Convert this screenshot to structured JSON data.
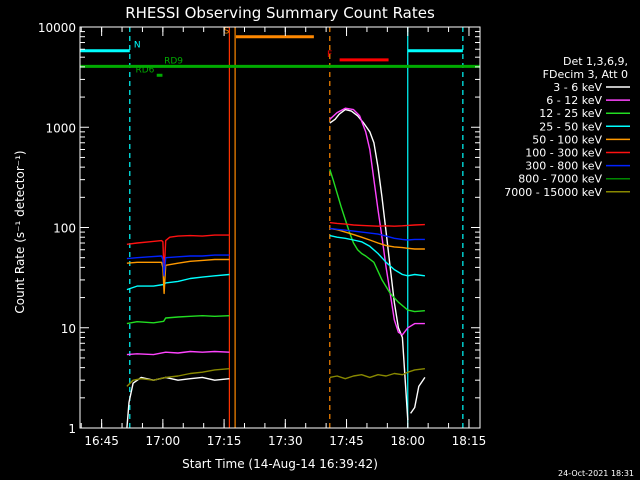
{
  "chart_data": {
    "type": "line",
    "title": "RHESSI Observing Summary Count Rates",
    "xlabel": "Start Time (14-Aug-14 16:39:42)",
    "ylabel": "Count Rate (s⁻¹ detector⁻¹)",
    "x_units": "minutes since 16:39:42",
    "xlim": [
      0,
      98
    ],
    "ylim": [
      1,
      10000
    ],
    "yscale": "log",
    "x_ticks": [
      {
        "t": 5.3,
        "label": "16:45"
      },
      {
        "t": 20.3,
        "label": "17:00"
      },
      {
        "t": 35.3,
        "label": "17:15"
      },
      {
        "t": 50.3,
        "label": "17:30"
      },
      {
        "t": 65.3,
        "label": "17:45"
      },
      {
        "t": 80.3,
        "label": "18:00"
      },
      {
        "t": 95.3,
        "label": "18:15"
      }
    ],
    "y_ticks": [
      1,
      10,
      100,
      1000,
      10000
    ],
    "y_tick_labels": [
      "1",
      "10",
      "100",
      "1000",
      "10000"
    ],
    "legend_header": [
      "Det 1,3,6,9,",
      "FDecim 3, Att 0"
    ],
    "footer_date": "24-Oct-2021 18:31",
    "series": [
      {
        "name": "3 - 6 keV",
        "color": "#ffffff",
        "segments": [
          [
            [
              11.5,
              1
            ],
            [
              12,
              1.8
            ],
            [
              13,
              2.8
            ],
            [
              15,
              3.2
            ],
            [
              18,
              3
            ],
            [
              21,
              3.2
            ],
            [
              24,
              3
            ],
            [
              27,
              3.1
            ],
            [
              30,
              3.2
            ],
            [
              33,
              3
            ],
            [
              36.6,
              3.1
            ]
          ],
          [
            [
              61.2,
              1100
            ],
            [
              62.5,
              1200
            ],
            [
              63.5,
              1350
            ],
            [
              65,
              1500
            ],
            [
              66.5,
              1450
            ],
            [
              68,
              1300
            ],
            [
              69.5,
              1100
            ],
            [
              71,
              900
            ],
            [
              72,
              700
            ],
            [
              73,
              400
            ],
            [
              74,
              200
            ],
            [
              75,
              90
            ],
            [
              76,
              40
            ],
            [
              77,
              18
            ],
            [
              78,
              10
            ],
            [
              79,
              8
            ],
            [
              80.3,
              1.2
            ]
          ],
          [
            [
              81,
              1.4
            ],
            [
              82,
              1.6
            ],
            [
              83,
              2.6
            ],
            [
              84.5,
              3.2
            ]
          ]
        ]
      },
      {
        "name": "6 - 12 keV",
        "color": "#ff44ff",
        "segments": [
          [
            [
              11.5,
              5.4
            ],
            [
              14,
              5.5
            ],
            [
              18,
              5.4
            ],
            [
              21,
              5.7
            ],
            [
              24,
              5.6
            ],
            [
              27,
              5.8
            ],
            [
              30,
              5.7
            ],
            [
              33,
              5.8
            ],
            [
              36.6,
              5.7
            ]
          ],
          [
            [
              61.2,
              1200
            ],
            [
              63,
              1400
            ],
            [
              65,
              1550
            ],
            [
              67,
              1500
            ],
            [
              68.5,
              1300
            ],
            [
              70,
              900
            ],
            [
              71,
              600
            ],
            [
              72,
              300
            ],
            [
              73,
              150
            ],
            [
              74,
              80
            ],
            [
              75,
              40
            ],
            [
              76,
              22
            ],
            [
              77,
              12
            ],
            [
              78,
              9
            ],
            [
              79,
              8.5
            ],
            [
              80.3,
              10
            ]
          ],
          [
            [
              80.3,
              10
            ],
            [
              82,
              11
            ],
            [
              84.5,
              11
            ]
          ]
        ]
      },
      {
        "name": "12 - 25 keV",
        "color": "#22dd22",
        "segments": [
          [
            [
              11.5,
              11
            ],
            [
              14,
              11.5
            ],
            [
              18,
              11.2
            ],
            [
              20.5,
              11.6
            ],
            [
              21,
              12.5
            ],
            [
              24,
              12.8
            ],
            [
              27,
              13
            ],
            [
              30,
              13.2
            ],
            [
              33,
              13
            ],
            [
              36.6,
              13.2
            ]
          ],
          [
            [
              61.2,
              380
            ],
            [
              62,
              300
            ],
            [
              63,
              220
            ],
            [
              64,
              160
            ],
            [
              65,
              120
            ],
            [
              66,
              90
            ],
            [
              67,
              70
            ],
            [
              68,
              60
            ],
            [
              69,
              55
            ],
            [
              70,
              52
            ],
            [
              72,
              45
            ],
            [
              74,
              30
            ],
            [
              76,
              22
            ],
            [
              78,
              18
            ],
            [
              80.3,
              15
            ]
          ],
          [
            [
              80.3,
              15
            ],
            [
              82,
              14.5
            ],
            [
              84.5,
              14.8
            ]
          ]
        ]
      },
      {
        "name": "25 - 50 keV",
        "color": "#00ffff",
        "segments": [
          [
            [
              11.5,
              24
            ],
            [
              14,
              26
            ],
            [
              18,
              26
            ],
            [
              20.5,
              27
            ],
            [
              21,
              28
            ],
            [
              24,
              29
            ],
            [
              27,
              31
            ],
            [
              30,
              32
            ],
            [
              33,
              33
            ],
            [
              36.6,
              34
            ]
          ],
          [
            [
              61.2,
              83
            ],
            [
              63,
              80
            ],
            [
              65,
              78
            ],
            [
              67,
              75
            ],
            [
              69,
              72
            ],
            [
              71,
              65
            ],
            [
              73,
              55
            ],
            [
              75,
              45
            ],
            [
              77,
              38
            ],
            [
              79,
              34
            ],
            [
              80.3,
              33
            ]
          ],
          [
            [
              80.3,
              33
            ],
            [
              82,
              34
            ],
            [
              84.5,
              33
            ]
          ]
        ]
      },
      {
        "name": "50 - 100 keV",
        "color": "#ff9900",
        "segments": [
          [
            [
              11.5,
              44
            ],
            [
              14,
              45
            ],
            [
              18,
              45
            ],
            [
              20,
              45
            ],
            [
              20.3,
              40
            ],
            [
              20.6,
              22
            ],
            [
              21,
              42
            ],
            [
              24,
              44
            ],
            [
              27,
              46
            ],
            [
              30,
              47
            ],
            [
              33,
              48
            ],
            [
              36.6,
              48
            ]
          ],
          [
            [
              61.2,
              98
            ],
            [
              63,
              95
            ],
            [
              65,
              90
            ],
            [
              67,
              85
            ],
            [
              69,
              80
            ],
            [
              71,
              75
            ],
            [
              73,
              70
            ],
            [
              75,
              66
            ],
            [
              77,
              64
            ],
            [
              79,
              63
            ],
            [
              80.3,
              62
            ]
          ],
          [
            [
              80.3,
              62
            ],
            [
              82,
              61
            ],
            [
              84.5,
              61
            ]
          ]
        ]
      },
      {
        "name": "100 - 300 keV",
        "color": "#ff1111",
        "segments": [
          [
            [
              11.5,
              68
            ],
            [
              14,
              70
            ],
            [
              17,
              72
            ],
            [
              20,
              74
            ],
            [
              20.3,
              72
            ],
            [
              20.6,
              35
            ],
            [
              21,
              74
            ],
            [
              22,
              80
            ],
            [
              24,
              82
            ],
            [
              27,
              83
            ],
            [
              30,
              82
            ],
            [
              33,
              84
            ],
            [
              36.6,
              84
            ]
          ],
          [
            [
              61.2,
              112
            ],
            [
              63,
              110
            ],
            [
              65,
              108
            ],
            [
              67,
              106
            ],
            [
              69,
              105
            ],
            [
              71,
              104
            ],
            [
              73,
              103
            ],
            [
              75,
              104
            ],
            [
              77,
              103
            ],
            [
              79,
              104
            ],
            [
              80.3,
              105
            ]
          ],
          [
            [
              80.3,
              105
            ],
            [
              82,
              106
            ],
            [
              84.5,
              107
            ]
          ]
        ]
      },
      {
        "name": "300 - 800 keV",
        "color": "#0022ff",
        "segments": [
          [
            [
              11.5,
              49
            ],
            [
              14,
              50
            ],
            [
              17,
              51
            ],
            [
              20,
              52
            ],
            [
              20.3,
              48
            ],
            [
              20.6,
              33
            ],
            [
              21,
              50
            ],
            [
              24,
              51
            ],
            [
              27,
              52
            ],
            [
              30,
              52
            ],
            [
              33,
              53
            ],
            [
              36.6,
              53
            ]
          ],
          [
            [
              61.2,
              98
            ],
            [
              63,
              96
            ],
            [
              65,
              94
            ],
            [
              67,
              92
            ],
            [
              69,
              90
            ],
            [
              71,
              88
            ],
            [
              73,
              86
            ],
            [
              75,
              82
            ],
            [
              77,
              78
            ],
            [
              79,
              76
            ],
            [
              80.3,
              75
            ]
          ],
          [
            [
              80.3,
              75
            ],
            [
              82,
              76
            ],
            [
              84.5,
              76
            ]
          ]
        ]
      },
      {
        "name": "800 - 7000 keV",
        "color": "#008800",
        "segments": []
      },
      {
        "name": "7000 - 15000 keV",
        "color": "#888800",
        "segments": [
          [
            [
              11.5,
              2.6
            ],
            [
              13,
              3
            ],
            [
              15,
              3.1
            ],
            [
              18,
              3
            ],
            [
              21,
              3.2
            ],
            [
              24,
              3.3
            ],
            [
              27,
              3.5
            ],
            [
              30,
              3.6
            ],
            [
              33,
              3.8
            ],
            [
              36.6,
              3.9
            ]
          ],
          [
            [
              61.2,
              3.2
            ],
            [
              63,
              3.3
            ],
            [
              65,
              3.1
            ],
            [
              67,
              3.3
            ],
            [
              69,
              3.4
            ],
            [
              71,
              3.2
            ],
            [
              73,
              3.4
            ],
            [
              75,
              3.3
            ],
            [
              77,
              3.5
            ],
            [
              79,
              3.4
            ],
            [
              80.3,
              3.6
            ]
          ],
          [
            [
              80.3,
              3.6
            ],
            [
              82,
              3.8
            ],
            [
              84.5,
              3.9
            ]
          ]
        ]
      }
    ],
    "flag_markers": [
      {
        "label": "N",
        "color": "#00ffff",
        "y": 5800,
        "segments": [
          [
            0,
            12.2
          ],
          [
            80.3,
            93.8
          ]
        ],
        "label_t": 13.2
      },
      {
        "label": "S",
        "color": "#ff8800",
        "y": 8000,
        "segments": [
          [
            38.2,
            57.3
          ]
        ],
        "label_t": 35.2
      },
      {
        "label": "F",
        "color": "#ff0000",
        "y": 4700,
        "segments": [
          [
            63.6,
            75.6
          ]
        ],
        "label_t": 60.5
      },
      {
        "label": "RD6",
        "color": "#00aa00",
        "y": 3300,
        "segments": [
          [
            18.8,
            20.2
          ]
        ],
        "label_t": 13.6
      },
      {
        "label": "RD9",
        "color": "#00aa00",
        "y": 4050,
        "segments": [
          [
            0,
            98
          ]
        ],
        "label_t": 20.6
      }
    ],
    "vertical_lines": [
      {
        "t": 12.2,
        "color": "#00ffff",
        "style": "dashed"
      },
      {
        "t": 36.6,
        "color": "#ff3300",
        "style": "solid"
      },
      {
        "t": 38.0,
        "color": "#ff8800",
        "style": "solid"
      },
      {
        "t": 61.2,
        "color": "#ff8800",
        "style": "dashed"
      },
      {
        "t": 80.3,
        "color": "#00ffff",
        "style": "solid"
      },
      {
        "t": 93.8,
        "color": "#00ffff",
        "style": "dashed"
      }
    ]
  }
}
